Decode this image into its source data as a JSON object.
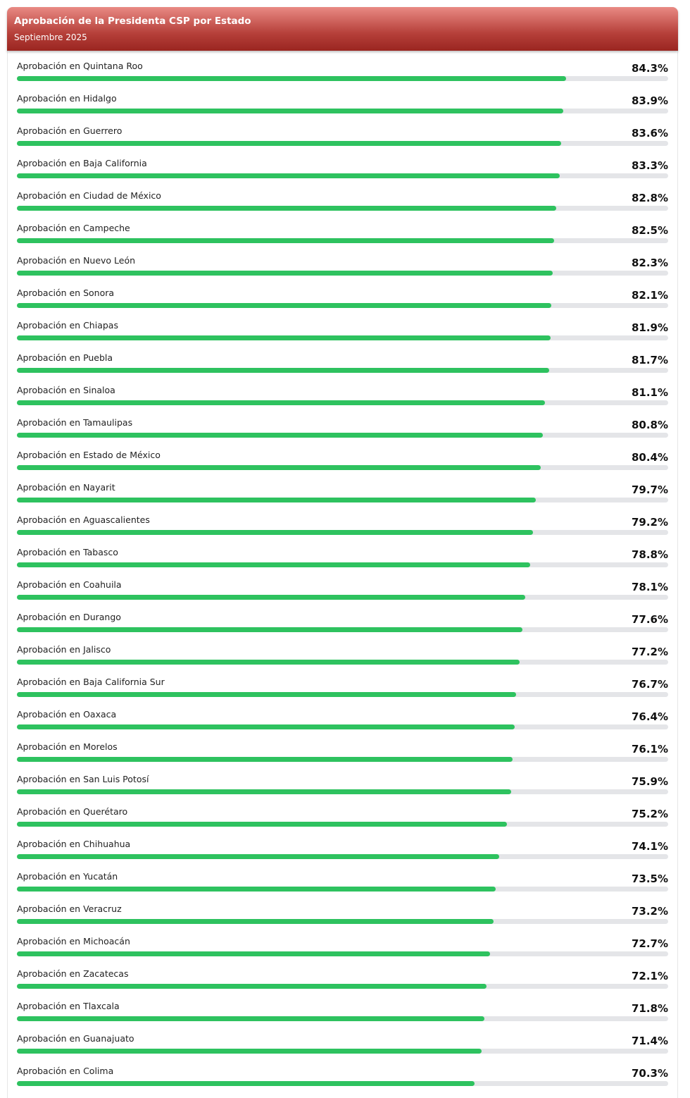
{
  "chart_data": {
    "type": "bar",
    "orientation": "horizontal",
    "title": "Aprobación de la Presidenta CSP por Estado",
    "subtitle": "Septiembre 2025",
    "color": "#2ec25f",
    "xlim": [
      0,
      100
    ],
    "categories": [
      "Aprobación en Quintana Roo",
      "Aprobación en Hidalgo",
      "Aprobación en Guerrero",
      "Aprobación en Baja California",
      "Aprobación en Ciudad de México",
      "Aprobación en Campeche",
      "Aprobación en Nuevo León",
      "Aprobación en Sonora",
      "Aprobación en Chiapas",
      "Aprobación en Puebla",
      "Aprobación en Sinaloa",
      "Aprobación en Tamaulipas",
      "Aprobación en Estado de México",
      "Aprobación en Nayarit",
      "Aprobación en Aguascalientes",
      "Aprobación en Tabasco",
      "Aprobación en Coahuila",
      "Aprobación en Durango",
      "Aprobación en Jalisco",
      "Aprobación en Baja California Sur",
      "Aprobación en Oaxaca",
      "Aprobación en Morelos",
      "Aprobación en San Luis Potosí",
      "Aprobación en Querétaro",
      "Aprobación en Chihuahua",
      "Aprobación en Yucatán",
      "Aprobación en Veracruz",
      "Aprobación en Michoacán",
      "Aprobación en Zacatecas",
      "Aprobación en Tlaxcala",
      "Aprobación en Guanajuato",
      "Aprobación en Colima"
    ],
    "values": [
      84.3,
      83.9,
      83.6,
      83.3,
      82.8,
      82.5,
      82.3,
      82.1,
      81.9,
      81.7,
      81.1,
      80.8,
      80.4,
      79.7,
      79.2,
      78.8,
      78.1,
      77.6,
      77.2,
      76.7,
      76.4,
      76.1,
      75.9,
      75.2,
      74.1,
      73.5,
      73.2,
      72.7,
      72.1,
      71.8,
      71.4,
      70.3
    ],
    "value_labels": [
      "84.3%",
      "83.9%",
      "83.6%",
      "83.3%",
      "82.8%",
      "82.5%",
      "82.3%",
      "82.1%",
      "81.9%",
      "81.7%",
      "81.1%",
      "80.8%",
      "80.4%",
      "79.7%",
      "79.2%",
      "78.8%",
      "78.1%",
      "77.6%",
      "77.2%",
      "76.7%",
      "76.4%",
      "76.1%",
      "75.9%",
      "75.2%",
      "74.1%",
      "73.5%",
      "73.2%",
      "72.7%",
      "72.1%",
      "71.8%",
      "71.4%",
      "70.3%"
    ]
  }
}
